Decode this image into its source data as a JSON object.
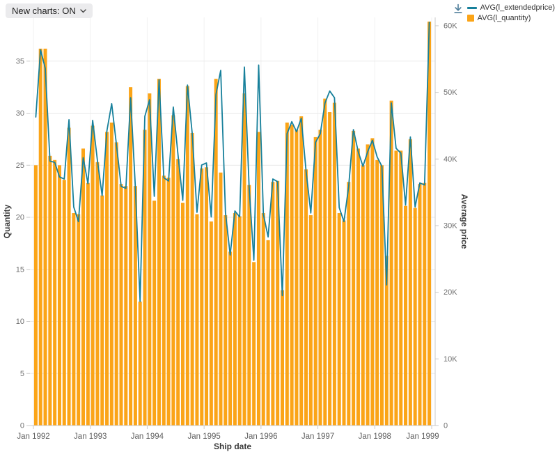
{
  "toolbar": {
    "new_charts_label": "New charts: ON"
  },
  "download": {
    "icon": "download-arrow",
    "color": "#4F7E9B"
  },
  "legend": [
    {
      "label": "AVG(l_extendedprice)",
      "type": "line",
      "color": "#17809B"
    },
    {
      "label": "AVG(l_quantity)",
      "type": "bar",
      "color": "#FBA417"
    }
  ],
  "chart_data": {
    "type": "bar",
    "title": "",
    "xlabel": "Ship date",
    "x_start": "Jan 1992",
    "x_end": "Dec 1998",
    "x_tick_labels": [
      "Jan 1992",
      "Jan 1993",
      "Jan 1994",
      "Jan 1995",
      "Jan 1996",
      "Jan 1997",
      "Jan 1998",
      "Jan 1999"
    ],
    "left_axis": {
      "label": "Quantity",
      "ticks": [
        0,
        5,
        10,
        15,
        20,
        25,
        30,
        35
      ],
      "max": 39.2
    },
    "right_axis": {
      "label": "Average price",
      "tick_labels": [
        "0",
        "10K",
        "20K",
        "30K",
        "40K",
        "50K",
        "60K"
      ],
      "tick_values": [
        0,
        10,
        20,
        30,
        40,
        50,
        60
      ],
      "max": 61.25,
      "unit": "K"
    },
    "grid": true,
    "legend_position": "top-right",
    "series": [
      {
        "name": "AVG(l_quantity)",
        "type": "bar",
        "axis": "left",
        "color": "#FBA417",
        "values": [
          25.0,
          36.2,
          36.2,
          25.9,
          25.5,
          25.0,
          23.6,
          28.6,
          20.4,
          20.3,
          26.6,
          23.3,
          28.8,
          25.3,
          22.1,
          28.2,
          29.1,
          27.2,
          23.2,
          23.0,
          32.5,
          23.0,
          11.9,
          28.4,
          31.9,
          21.6,
          33.3,
          24.0,
          23.8,
          29.8,
          25.6,
          21.4,
          32.6,
          28.1,
          20.3,
          24.7,
          24.8,
          19.6,
          33.3,
          24.3,
          20.2,
          16.7,
          20.4,
          20.1,
          31.9,
          23.1,
          15.7,
          28.2,
          20.4,
          17.8,
          23.4,
          23.5,
          13.0,
          29.1,
          28.9,
          28.4,
          29.7,
          24.6,
          20.2,
          27.7,
          28.4,
          31.4,
          30.1,
          31.0,
          20.4,
          19.7,
          23.4,
          28.3,
          26.6,
          25.0,
          27.0,
          27.6,
          25.5,
          25.0,
          16.3,
          31.2,
          26.4,
          26.4,
          21.1,
          27.5,
          20.9,
          23.2,
          23.3,
          38.8
        ]
      },
      {
        "name": "AVG(l_extendedprice)",
        "type": "line",
        "axis": "right",
        "unit": "K$",
        "color": "#17809B",
        "values": [
          46.3,
          56.4,
          53.6,
          39.7,
          39.5,
          37.3,
          37.0,
          45.9,
          32.8,
          30.6,
          40.2,
          36.3,
          45.8,
          39.8,
          34.5,
          44.2,
          48.3,
          42.2,
          35.9,
          35.6,
          49.2,
          35.8,
          18.6,
          46.4,
          48.9,
          34.4,
          51.9,
          37.2,
          36.7,
          47.8,
          40.6,
          33.8,
          51.1,
          43.8,
          32.0,
          39.1,
          39.4,
          31.3,
          49.7,
          53.3,
          32.0,
          25.6,
          32.2,
          31.3,
          53.8,
          35.8,
          24.8,
          54.1,
          31.7,
          28.3,
          37.0,
          36.6,
          19.5,
          43.8,
          45.6,
          44.1,
          46.1,
          38.3,
          31.9,
          42.5,
          43.8,
          48.4,
          50.2,
          49.2,
          32.7,
          30.6,
          35.9,
          44.4,
          41.1,
          38.9,
          41.1,
          42.8,
          40.3,
          38.9,
          21.1,
          48.4,
          41.6,
          40.9,
          33.1,
          43.3,
          32.8,
          36.4,
          36.1,
          60.5
        ]
      }
    ]
  },
  "style": {
    "grid_h": "#e9e9e9",
    "grid_v": "#f1f1f1",
    "axis": "#c9c9c9",
    "tick_text": "#6f6f6f",
    "title_text": "#3a3a3a"
  }
}
